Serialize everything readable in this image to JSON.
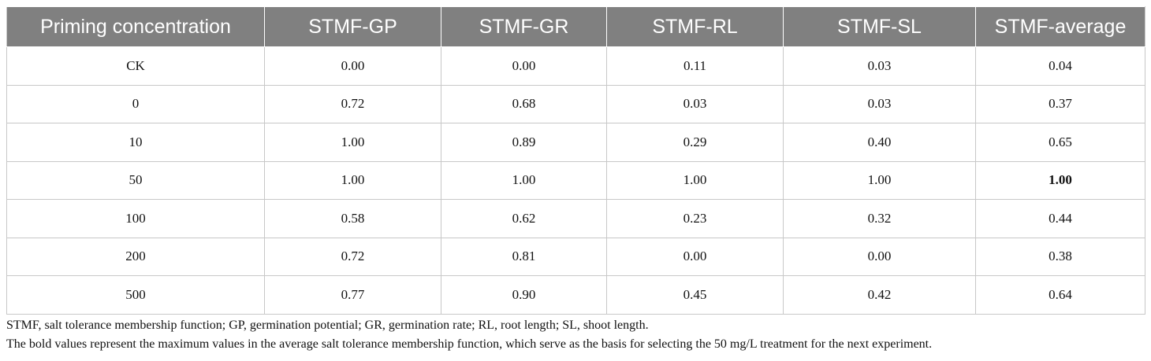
{
  "table": {
    "headers": [
      "Priming concentration",
      "STMF-GP",
      "STMF-GR",
      "STMF-RL",
      "STMF-SL",
      "STMF-average"
    ],
    "rows": [
      [
        "CK",
        "0.00",
        "0.00",
        "0.11",
        "0.03",
        "0.04"
      ],
      [
        "0",
        "0.72",
        "0.68",
        "0.03",
        "0.03",
        "0.37"
      ],
      [
        "10",
        "1.00",
        "0.89",
        "0.29",
        "0.40",
        "0.65"
      ],
      [
        "50",
        "1.00",
        "1.00",
        "1.00",
        "1.00",
        "1.00"
      ],
      [
        "100",
        "0.58",
        "0.62",
        "0.23",
        "0.32",
        "0.44"
      ],
      [
        "200",
        "0.72",
        "0.81",
        "0.00",
        "0.00",
        "0.38"
      ],
      [
        "500",
        "0.77",
        "0.90",
        "0.45",
        "0.42",
        "0.64"
      ]
    ],
    "header_bg": "#808080",
    "header_text_color": "#ffffff",
    "border_color": "#c8c8c8"
  },
  "footnotes": {
    "abbreviations": "STMF, salt tolerance membership function; GP, germination potential; GR, germination rate; RL, root length; SL, shoot length.",
    "bold_note": "The bold values represent the maximum values in the average salt tolerance membership function, which serve as the basis for selecting the 50 mg/L treatment for the next experiment."
  }
}
